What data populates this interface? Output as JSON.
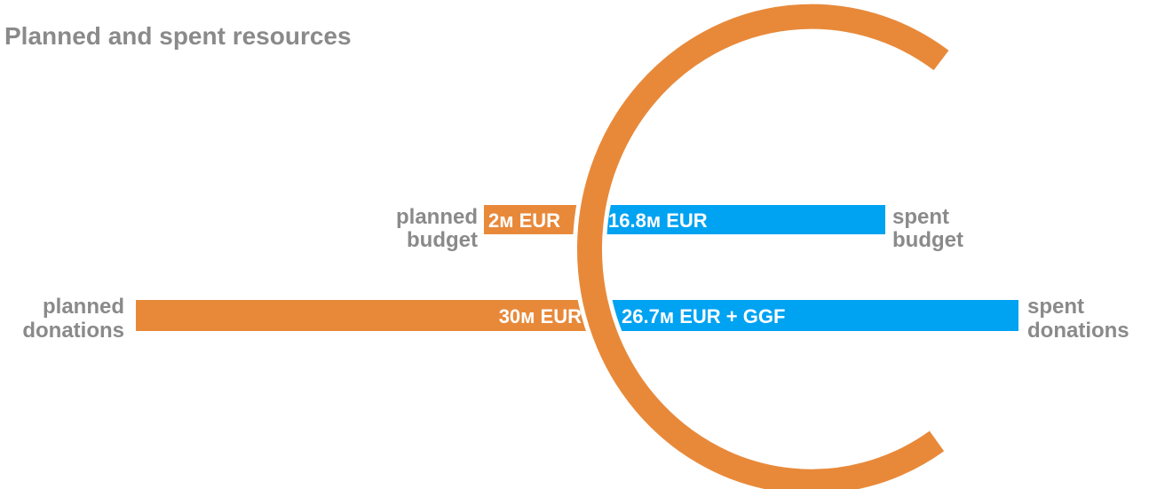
{
  "title": "Planned and spent resources",
  "rows": [
    {
      "left_label": [
        "planned",
        "budget"
      ],
      "left_value": "2м EUR",
      "right_value": "16.8м EUR",
      "right_label": [
        "spent",
        "budget"
      ]
    },
    {
      "left_label": [
        "planned",
        "donations"
      ],
      "left_value": "30м EUR",
      "right_value": "26.7м EUR + GGF",
      "right_label": [
        "spent",
        "donations"
      ]
    }
  ]
}
